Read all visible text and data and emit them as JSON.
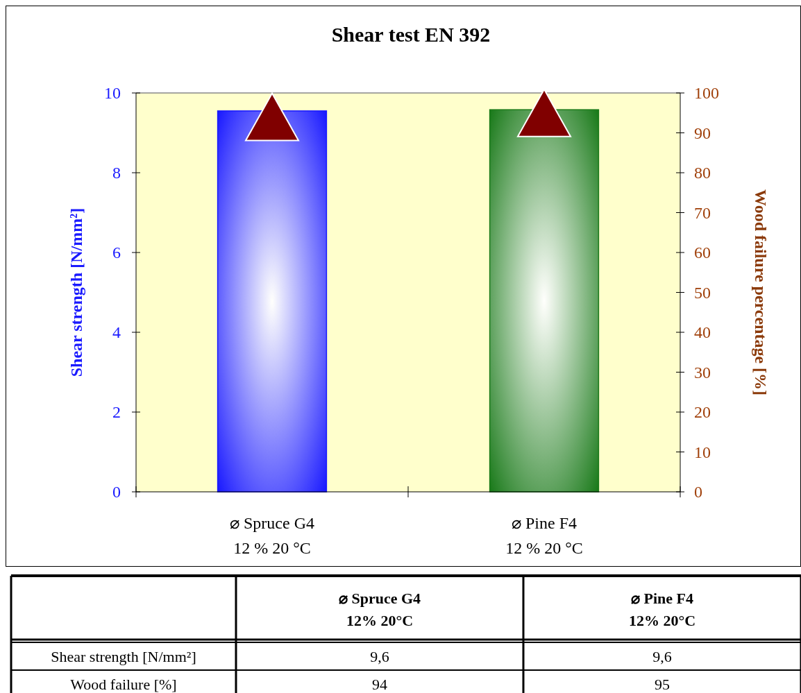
{
  "chart_data": {
    "type": "bar",
    "title": "Shear test EN 392",
    "ylabel": "Shear strength [N/mm²]",
    "y2label": "Wood failure percentage [%]",
    "categories": [
      "⌀ Spruce G4\n12 % 20 °C",
      "⌀ Pine F4\n12 % 20 °C"
    ],
    "ylim": [
      0,
      10
    ],
    "yticks": [
      0,
      2,
      4,
      6,
      8,
      10
    ],
    "y2lim": [
      0,
      100
    ],
    "y2ticks": [
      0,
      10,
      20,
      30,
      40,
      50,
      60,
      70,
      80,
      90,
      100
    ],
    "legend": false,
    "grid": false,
    "annotations": [
      "⌀ Spruce G4\n12% 20°C",
      "⌀ Pine F4\n12% 20°C",
      "Shear strength [N/mm²]",
      "Wood failure [%]"
    ],
    "series": [
      {
        "colors": [
          "#1a1aff",
          "#1a7a1a"
        ],
        "values": [
          9.55,
          9.58
        ],
        "value_labels": [
          "9,6",
          "9,6"
        ]
      },
      {
        "type": "scatter",
        "axis": "y2",
        "color": "#800000",
        "marker": "triangle",
        "values": [
          94,
          95
        ],
        "value_labels": [
          "94",
          "95"
        ]
      }
    ]
  }
}
